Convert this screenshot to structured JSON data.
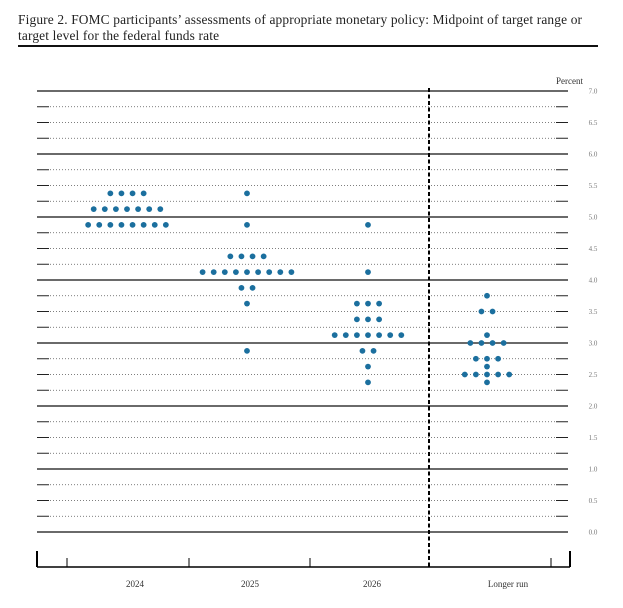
{
  "chart_data": {
    "type": "scatter",
    "title": "Figure 2.  FOMC participants’ assessments of appropriate monetary policy:  Midpoint of target range or target level for the federal funds rate",
    "ylabel": "Percent",
    "ylim": [
      0,
      7
    ],
    "yticks": [
      "0.0",
      "0.5",
      "1.0",
      "1.5",
      "2.0",
      "2.5",
      "3.0",
      "3.5",
      "4.0",
      "4.5",
      "5.0",
      "5.5",
      "6.0",
      "6.5",
      "7.0"
    ],
    "categories": [
      "2024",
      "2025",
      "2026",
      "Longer run"
    ],
    "dot_color": "#1b6f9e",
    "series": [
      {
        "name": "2024",
        "points": [
          {
            "y": 5.375,
            "count": 4
          },
          {
            "y": 5.125,
            "count": 7
          },
          {
            "y": 4.875,
            "count": 8
          }
        ]
      },
      {
        "name": "2025",
        "points": [
          {
            "y": 5.375,
            "count": 1
          },
          {
            "y": 4.875,
            "count": 1
          },
          {
            "y": 4.375,
            "count": 4
          },
          {
            "y": 4.125,
            "count": 9
          },
          {
            "y": 3.875,
            "count": 2
          },
          {
            "y": 3.625,
            "count": 1
          },
          {
            "y": 2.875,
            "count": 1
          }
        ]
      },
      {
        "name": "2026",
        "points": [
          {
            "y": 4.875,
            "count": 1
          },
          {
            "y": 4.125,
            "count": 1
          },
          {
            "y": 3.625,
            "count": 3
          },
          {
            "y": 3.375,
            "count": 3
          },
          {
            "y": 3.125,
            "count": 7
          },
          {
            "y": 2.875,
            "count": 2
          },
          {
            "y": 2.625,
            "count": 1
          },
          {
            "y": 2.375,
            "count": 1
          }
        ]
      },
      {
        "name": "Longer run",
        "points": [
          {
            "y": 3.75,
            "count": 1
          },
          {
            "y": 3.5,
            "count": 2
          },
          {
            "y": 3.125,
            "count": 1
          },
          {
            "y": 3.0,
            "count": 4
          },
          {
            "y": 2.75,
            "count": 3
          },
          {
            "y": 2.625,
            "count": 1
          },
          {
            "y": 2.5,
            "count": 5
          },
          {
            "y": 2.375,
            "count": 1
          }
        ]
      }
    ]
  }
}
